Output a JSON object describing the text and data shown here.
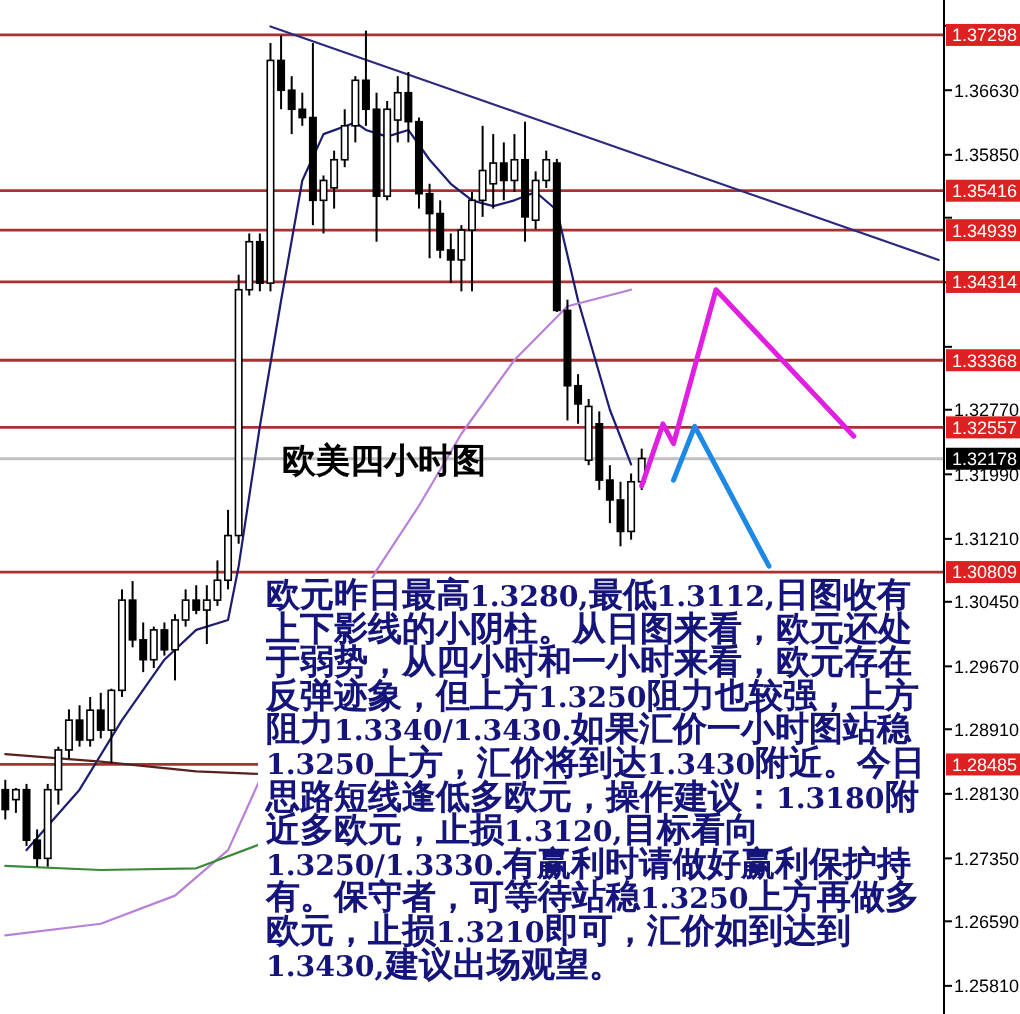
{
  "chart_data": {
    "type": "candlestick",
    "categories": [
      null,
      null,
      null,
      null,
      null,
      null,
      null,
      null,
      null,
      null,
      null,
      null,
      null,
      null,
      null,
      null,
      null,
      null,
      null,
      null,
      null,
      null,
      null,
      null,
      null,
      null,
      null,
      null,
      null,
      null,
      null,
      null,
      null,
      null,
      null,
      null,
      null,
      null,
      null,
      null,
      null,
      null,
      null,
      null,
      null,
      null,
      null,
      null,
      null,
      null,
      null,
      null,
      null,
      null,
      null,
      null,
      null,
      null,
      null,
      null,
      null,
      null,
      null,
      null,
      null,
      null,
      null,
      null,
      null,
      null,
      null,
      null,
      null,
      null,
      null,
      null,
      null,
      null,
      null,
      null,
      null,
      null,
      null,
      null,
      null,
      null,
      null,
      null,
      null
    ],
    "ohlc": [
      [
        1.2818,
        1.283,
        1.2782,
        1.2794
      ],
      [
        1.2806,
        1.282,
        1.279,
        1.2818
      ],
      [
        1.2818,
        1.2825,
        1.275,
        1.2757
      ],
      [
        1.2757,
        1.277,
        1.2725,
        1.2735
      ],
      [
        1.2735,
        1.2825,
        1.2725,
        1.2818
      ],
      [
        1.2818,
        1.287,
        1.28,
        1.2866
      ],
      [
        1.2866,
        1.2915,
        1.2855,
        1.2902
      ],
      [
        1.2902,
        1.292,
        1.287,
        1.2878
      ],
      [
        1.2878,
        1.293,
        1.287,
        1.2914
      ],
      [
        1.2914,
        1.2935,
        1.288,
        1.289
      ],
      [
        1.289,
        1.294,
        1.285,
        1.2938
      ],
      [
        1.2938,
        1.306,
        1.293,
        1.3047
      ],
      [
        1.3047,
        1.307,
        1.299,
        1.2999
      ],
      [
        1.2999,
        1.302,
        1.296,
        1.2975
      ],
      [
        1.2975,
        1.3015,
        1.2965,
        1.3011
      ],
      [
        1.3011,
        1.302,
        1.298,
        1.2987
      ],
      [
        1.2987,
        1.303,
        1.295,
        1.3023
      ],
      [
        1.3023,
        1.306,
        1.3015,
        1.3047
      ],
      [
        1.3047,
        1.3065,
        1.303,
        1.3035
      ],
      [
        1.3035,
        1.3065,
        1.2994,
        1.3047
      ],
      [
        1.3047,
        1.3095,
        1.304,
        1.3071
      ],
      [
        1.3071,
        1.3156,
        1.306,
        1.3125
      ],
      [
        1.3125,
        1.344,
        1.3115,
        1.3422
      ],
      [
        1.3422,
        1.349,
        1.3415,
        1.348
      ],
      [
        1.348,
        1.349,
        1.342,
        1.343
      ],
      [
        1.343,
        1.372,
        1.342,
        1.3699
      ],
      [
        1.3699,
        1.3729,
        1.364,
        1.3663
      ],
      [
        1.3663,
        1.368,
        1.361,
        1.364
      ],
      [
        1.364,
        1.366,
        1.362,
        1.363
      ],
      [
        1.363,
        1.372,
        1.35,
        1.353
      ],
      [
        1.353,
        1.356,
        1.349,
        1.3554
      ],
      [
        1.3545,
        1.359,
        1.352,
        1.3579
      ],
      [
        1.3579,
        1.364,
        1.357,
        1.362
      ],
      [
        1.362,
        1.368,
        1.36,
        1.3675
      ],
      [
        1.3675,
        1.3735,
        1.362,
        1.364
      ],
      [
        1.364,
        1.366,
        1.348,
        1.3535
      ],
      [
        1.3535,
        1.365,
        1.353,
        1.364
      ],
      [
        1.3627,
        1.368,
        1.36,
        1.366
      ],
      [
        1.366,
        1.3685,
        1.36,
        1.3625
      ],
      [
        1.3625,
        1.363,
        1.352,
        1.3538
      ],
      [
        1.3538,
        1.355,
        1.346,
        1.3514
      ],
      [
        1.3514,
        1.353,
        1.346,
        1.347
      ],
      [
        1.347,
        1.349,
        1.343,
        1.3458
      ],
      [
        1.3458,
        1.35,
        1.342,
        1.3494
      ],
      [
        1.3494,
        1.354,
        1.342,
        1.353
      ],
      [
        1.353,
        1.362,
        1.351,
        1.3566
      ],
      [
        1.355,
        1.361,
        1.352,
        1.3575
      ],
      [
        1.3575,
        1.36,
        1.353,
        1.3554
      ],
      [
        1.3554,
        1.361,
        1.354,
        1.3579
      ],
      [
        1.3579,
        1.3625,
        1.348,
        1.351
      ],
      [
        1.3506,
        1.3565,
        1.3495,
        1.3554
      ],
      [
        1.3554,
        1.359,
        1.3545,
        1.3579
      ],
      [
        1.3575,
        1.358,
        1.3395,
        1.3397
      ],
      [
        1.3397,
        1.341,
        1.3264,
        1.3306
      ],
      [
        1.3306,
        1.332,
        1.326,
        1.3284
      ],
      [
        1.3216,
        1.329,
        1.321,
        1.3281
      ],
      [
        1.326,
        1.3275,
        1.318,
        1.3192
      ],
      [
        1.3192,
        1.321,
        1.314,
        1.3168
      ],
      [
        1.3168,
        1.319,
        1.3112,
        1.313
      ],
      [
        1.313,
        1.32,
        1.312,
        1.319
      ],
      [
        1.319,
        1.323,
        1.318,
        1.3218
      ],
      null,
      null,
      null,
      null,
      null,
      null,
      null,
      null,
      null,
      null,
      null,
      null,
      null,
      null,
      null,
      null,
      null,
      null,
      null,
      null,
      null,
      null,
      null,
      null,
      null,
      null,
      null,
      null
    ],
    "series": [
      {
        "type": "line",
        "color": "#1c1c70",
        "values": [
          null,
          null,
          1.2745,
          null,
          null,
          null,
          null,
          1.2818,
          null,
          null,
          null,
          1.2902,
          null,
          null,
          null,
          1.2975,
          null,
          null,
          1.3011,
          null,
          null,
          1.3023,
          1.3088,
          null,
          1.3257,
          null,
          1.3409,
          null,
          1.3554,
          null,
          1.361,
          null,
          null,
          1.3624,
          1.3615,
          null,
          1.3607,
          null,
          1.3615,
          null,
          1.3579,
          null,
          1.355,
          null,
          1.353,
          null,
          1.3523,
          null,
          1.353,
          null,
          1.354,
          null,
          1.3518,
          null,
          1.3409,
          null,
          null,
          1.3277,
          null,
          1.3211,
          null,
          null,
          null,
          null,
          null,
          null,
          null,
          null,
          null,
          null,
          null,
          null,
          null,
          null,
          null,
          null,
          null,
          null,
          null,
          null,
          null,
          null,
          null,
          null,
          null,
          null,
          null,
          null,
          null
        ]
      },
      {
        "type": "line",
        "color": "#b880d8",
        "values": [
          1.2642,
          null,
          null,
          null,
          null,
          null,
          null,
          null,
          null,
          1.2656,
          null,
          null,
          null,
          null,
          null,
          null,
          1.269,
          null,
          null,
          null,
          null,
          1.2745,
          null,
          null,
          1.283,
          null,
          null,
          null,
          null,
          null,
          null,
          null,
          null,
          null,
          null,
          1.3083,
          null,
          null,
          null,
          1.3161,
          null,
          null,
          null,
          1.3248,
          null,
          null,
          null,
          null,
          1.3337,
          null,
          null,
          null,
          null,
          1.3402,
          null,
          null,
          null,
          null,
          null,
          1.3422,
          null,
          null,
          null,
          null,
          null,
          null,
          null,
          null,
          null,
          null,
          null,
          null,
          null,
          null,
          null,
          null,
          null,
          null,
          null,
          null,
          null,
          null,
          null,
          null,
          null,
          null,
          null,
          null,
          null
        ]
      },
      {
        "type": "line",
        "color": "#5a2020",
        "values": [
          1.2861,
          null,
          null,
          null,
          null,
          null,
          null,
          null,
          null,
          1.2852,
          null,
          null,
          null,
          null,
          null,
          null,
          null,
          null,
          1.284,
          null,
          null,
          null,
          null,
          null,
          1.2837,
          null,
          null,
          null,
          null,
          null,
          null,
          null,
          null,
          null,
          null,
          null,
          null,
          null,
          null,
          null,
          null,
          null,
          null,
          null,
          null,
          null,
          null,
          null,
          null,
          null,
          null,
          null,
          null,
          null,
          null,
          null,
          null,
          null,
          null,
          null,
          null,
          null,
          null,
          null,
          null,
          null,
          null,
          null,
          null,
          null,
          null,
          null,
          null,
          null,
          null,
          null,
          null,
          null,
          null,
          null,
          null,
          null,
          null,
          null,
          null,
          null,
          null,
          null,
          null
        ]
      },
      {
        "type": "line",
        "color": "#3a8a3a",
        "values": [
          1.2726,
          null,
          null,
          null,
          null,
          null,
          null,
          null,
          null,
          1.2721,
          null,
          null,
          null,
          null,
          null,
          null,
          null,
          null,
          1.2723,
          null,
          null,
          null,
          null,
          null,
          1.2752,
          null,
          null,
          null,
          null,
          null,
          null,
          null,
          null,
          null,
          null,
          null,
          null,
          null,
          null,
          null,
          null,
          null,
          null,
          null,
          null,
          null,
          null,
          null,
          null,
          null,
          null,
          null,
          null,
          null,
          null,
          null,
          null,
          null,
          null,
          null,
          null,
          null,
          null,
          null,
          null,
          null,
          null,
          null,
          null,
          null,
          null,
          null,
          null,
          null,
          null,
          null,
          null,
          null,
          null,
          null,
          null,
          null,
          null,
          null,
          null,
          null,
          null,
          null,
          null
        ]
      },
      {
        "type": "line",
        "color": "#2a2a80",
        "values": [
          null,
          null,
          null,
          null,
          null,
          null,
          null,
          null,
          null,
          null,
          null,
          null,
          null,
          null,
          null,
          null,
          null,
          null,
          null,
          null,
          null,
          null,
          null,
          null,
          null,
          1.374,
          null,
          null,
          null,
          null,
          null,
          null,
          null,
          null,
          null,
          null,
          null,
          null,
          null,
          null,
          null,
          null,
          null,
          null,
          null,
          null,
          null,
          null,
          null,
          null,
          null,
          null,
          null,
          null,
          null,
          null,
          null,
          null,
          null,
          null,
          null,
          null,
          null,
          null,
          null,
          null,
          null,
          null,
          null,
          null,
          null,
          null,
          null,
          null,
          null,
          null,
          null,
          null,
          null,
          null,
          null,
          null,
          null,
          null,
          null,
          null,
          null,
          null,
          1.3458
        ]
      },
      {
        "type": "line",
        "color": "#e020e0",
        "values": [
          null,
          null,
          null,
          null,
          null,
          null,
          null,
          null,
          null,
          null,
          null,
          null,
          null,
          null,
          null,
          null,
          null,
          null,
          null,
          null,
          null,
          null,
          null,
          null,
          null,
          null,
          null,
          null,
          null,
          null,
          null,
          null,
          null,
          null,
          null,
          null,
          null,
          null,
          null,
          null,
          null,
          null,
          null,
          null,
          null,
          null,
          null,
          null,
          null,
          null,
          null,
          null,
          null,
          null,
          null,
          null,
          null,
          null,
          null,
          null,
          1.3185,
          null,
          1.326,
          1.3236,
          null,
          null,
          null,
          1.3422,
          null,
          null,
          null,
          null,
          null,
          null,
          null,
          null,
          null,
          null,
          null,
          null,
          1.3245,
          null,
          null,
          null,
          null,
          null,
          null,
          null,
          null
        ]
      },
      {
        "type": "line",
        "color": "#1e88e5",
        "values": [
          null,
          null,
          null,
          null,
          null,
          null,
          null,
          null,
          null,
          null,
          null,
          null,
          null,
          null,
          null,
          null,
          null,
          null,
          null,
          null,
          null,
          null,
          null,
          null,
          null,
          null,
          null,
          null,
          null,
          null,
          null,
          null,
          null,
          null,
          null,
          null,
          null,
          null,
          null,
          null,
          null,
          null,
          null,
          null,
          null,
          null,
          null,
          null,
          null,
          null,
          null,
          null,
          null,
          null,
          null,
          null,
          null,
          null,
          null,
          null,
          null,
          null,
          null,
          1.3192,
          null,
          1.3257,
          null,
          null,
          null,
          null,
          null,
          null,
          1.3088,
          null,
          null,
          null,
          null,
          null,
          null,
          null,
          null,
          null,
          null,
          null,
          null,
          null,
          null,
          null,
          null
        ]
      }
    ],
    "ylim": [
      1.2547,
      1.3772
    ],
    "yticks": [
      {
        "value": 1.3741,
        "label": null
      },
      {
        "value": 1.3663,
        "label": "1.36630"
      },
      {
        "value": 1.3585,
        "label": "1.35850"
      },
      {
        "value": 1.3509,
        "label": null
      },
      {
        "value": 1.3431,
        "label": null
      },
      {
        "value": 1.3353,
        "label": null
      },
      {
        "value": 1.3277,
        "label": "1.32770"
      },
      {
        "value": 1.3199,
        "label": "1.31990"
      },
      {
        "value": 1.3121,
        "label": "1.31210"
      },
      {
        "value": 1.3045,
        "label": "1.30450"
      },
      {
        "value": 1.2967,
        "label": "1.29670"
      },
      {
        "value": 1.2891,
        "label": "1.28910"
      },
      {
        "value": 1.2813,
        "label": "1.28130"
      },
      {
        "value": 1.2735,
        "label": "1.27350"
      },
      {
        "value": 1.2659,
        "label": "1.26590"
      },
      {
        "value": 1.2581,
        "label": "1.25810"
      }
    ],
    "tick_labels": "y",
    "ref_lines": [
      {
        "axis": "y",
        "value": 1.37298,
        "label": "1.37298",
        "color": "#a83232"
      },
      {
        "axis": "y",
        "value": 1.35416,
        "label": "1.35416",
        "color": "#a83232"
      },
      {
        "axis": "y",
        "value": 1.34939,
        "label": "1.34939",
        "color": "#a83232"
      },
      {
        "axis": "y",
        "value": 1.34314,
        "label": "1.34314",
        "color": "#a83232"
      },
      {
        "axis": "y",
        "value": 1.33368,
        "label": "1.33368",
        "color": "#a83232"
      },
      {
        "axis": "y",
        "value": 1.32557,
        "label": "1.32557",
        "color": "#a83232"
      },
      {
        "axis": "y",
        "value": 1.30809,
        "label": "1.30809",
        "color": "#a83232"
      },
      {
        "axis": "y",
        "value": 1.28485,
        "label": "1.28485",
        "color": "#a83232"
      },
      {
        "axis": "y",
        "value": 1.32178,
        "label": "1.32178",
        "color": "#c0c0c0"
      }
    ],
    "annotations": [
      "欧美四小时图",
      "欧元昨日最高1.3280,最低1.3112,日图收有上下影线的小阴柱。从日图来看，欧元还处于弱势，从四小时和一小时来看，欧元存在反弹迹象，但上方1.3250阻力也较强，上方阻力1.3340/1.3430.如果汇价一小时图站稳1.3250上方，汇价将到达1.3430附近。今日思路短线逢低多欧元，操作建议：1.3180附近多欧元，止损1.3120,目标看向1.3250/1.3330.有赢利时请做好赢利保护持有。保守者，可等待站稳1.3250上方再做多欧元，止损1.3210即可，汇价如到达到1.3430,建议出场观望。"
    ]
  }
}
